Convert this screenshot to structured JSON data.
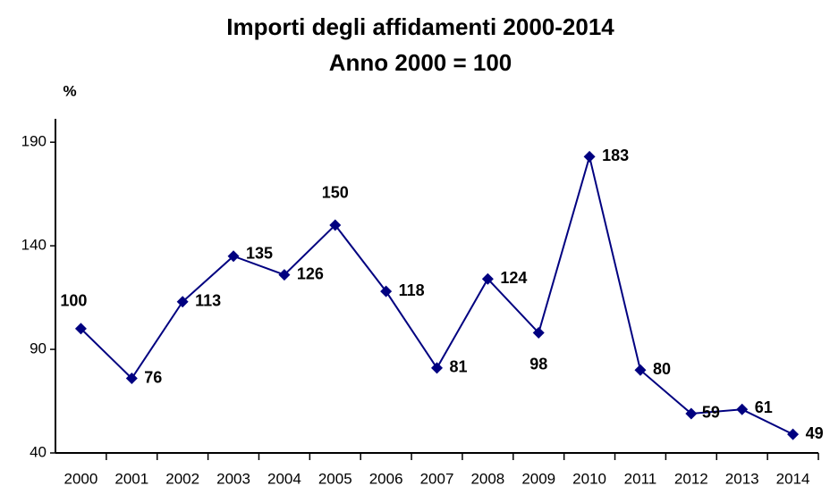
{
  "chart_data": {
    "type": "line",
    "title": "Importi degli affidamenti 2000-2014",
    "subtitle": "Anno 2000 = 100",
    "y_label": "%",
    "categories": [
      "2000",
      "2001",
      "2002",
      "2003",
      "2004",
      "2005",
      "2006",
      "2007",
      "2008",
      "2009",
      "2010",
      "2011",
      "2012",
      "2013",
      "2014"
    ],
    "series": [
      {
        "name": "Importi",
        "color": "#000080",
        "values": [
          100,
          76,
          113,
          135,
          126,
          150,
          118,
          81,
          124,
          98,
          183,
          80,
          59,
          61,
          49
        ]
      }
    ],
    "ylim": [
      40,
      200
    ],
    "yticks": [
      40,
      90,
      140,
      190
    ],
    "grid": false
  }
}
